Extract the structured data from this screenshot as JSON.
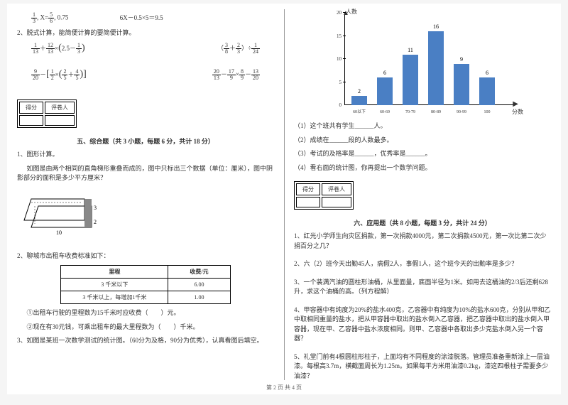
{
  "left": {
    "eq1": {
      "a": "1",
      "b": "3",
      "c": "5",
      "d": "6",
      "txt": ", X=",
      "tail": ", 0.75"
    },
    "eq2": "6X－0.5×5＝9.5",
    "item2": "2、脱式计算，能简便计算的要简便计算。",
    "e2a_pre": "＋",
    "e2a_mid": "×",
    "e2a_l": "2.5－",
    "e2b_mid": "＋",
    "e2b_tail": "）÷",
    "e2c_mid": "×［",
    "e2c_mid2": "＋",
    "e2c_tail": "］",
    "e2d": "－",
    "e2d2": "×",
    "e2d3": "－",
    "score": {
      "h1": "得分",
      "h2": "评卷人"
    },
    "sec5": "五、综合题（共 3 小题，每题 6 分，共计 18 分）",
    "q1": "1、图形计算。",
    "q1txt": "如图是由两个相同的直角梯形重叠而成的，图中只标出三个数据（单位：厘米），图中阴影部分的面积是多少平方厘米？",
    "shape": {
      "w": "10",
      "h1": "3",
      "h2": "2"
    },
    "q2": "2、聊城市出租车收费标准如下：",
    "table": {
      "h1": "里程",
      "h2": "收费/元",
      "r1a": "3 千米以下",
      "r1b": "6.00",
      "r2a": "3 千米以上，每增加1千米",
      "r2b": "1.00"
    },
    "q2a": "①出租车行驶的里程数为15千米时应收费（　　）元。",
    "q2b": "②现在有30元钱，可乘出租车的最大里程数为（　　）千米。",
    "q3": "3、如图是某班一次数学测试的统计图。（60分为及格，90分为优秀），认真看图后填空。"
  },
  "right": {
    "chart": {
      "ylabel": "人数",
      "xlabel": "分数",
      "ymax": 20,
      "yticks": [
        0,
        5,
        10,
        15,
        20
      ],
      "bars": [
        {
          "label": "60以下",
          "value": 2,
          "color": "#4a7fc4"
        },
        {
          "label": "60-69",
          "value": 6,
          "color": "#4a7fc4"
        },
        {
          "label": "70-79",
          "value": 11,
          "color": "#4a7fc4"
        },
        {
          "label": "80-89",
          "value": 16,
          "color": "#4a7fc4"
        },
        {
          "label": "90-99",
          "value": 9,
          "color": "#4a7fc4"
        },
        {
          "label": "100",
          "value": 6,
          "color": "#4a7fc4"
        }
      ]
    },
    "c1": "（1）这个班共有学生______人。",
    "c2": "（2）成绩在______段的人数最多。",
    "c3": "（3）考试的及格率是______，优秀率是______。",
    "c4": "（4）看右面的统计图，你再提出一个数学问题。",
    "score": {
      "h1": "得分",
      "h2": "评卷人"
    },
    "sec6": "六、应用题（共 8 小题，每题 3 分，共计 24 分）",
    "a1": "1、红光小学师生向灾区捐款，第一次捐款4000元，第二次捐款4500元，第一次比第二次少捐百分之几？",
    "a2": "2、六（2）班今天出勤45人，病假2人，事假1人，这个班今天的出勤率是多少？",
    "a3": "3、一个装满汽油的圆柱形油桶，从里面量，底面半径为1米。如用去这桶油的2/3后还剩628升，求这个油桶的高。（列方程解）",
    "a4": "4、甲容器中有纯度为20%的盐水400克，乙容器中有纯度为10%的盐水600克，分别从甲和乙中取相同重量的盐水，把从甲容器中取出的盐水倒入乙容器，把乙容器中取出的盐水倒入甲容器，现在甲、乙容器中盐水浓度相同。则甲、乙容器中各取出多少克盐水倒入另一个容器？",
    "a5": "5、礼堂门前有4根圆柱形柱子，上面均有不同程度的涂漆脱落。管理员准备重新涂上一层油漆。每根高3.7m，横截面周长为1.25m。如果每平方米用油漆0.2kg，漆这四根柱子需要多少油漆？"
  },
  "footer": "第 2 页 共 4 页"
}
